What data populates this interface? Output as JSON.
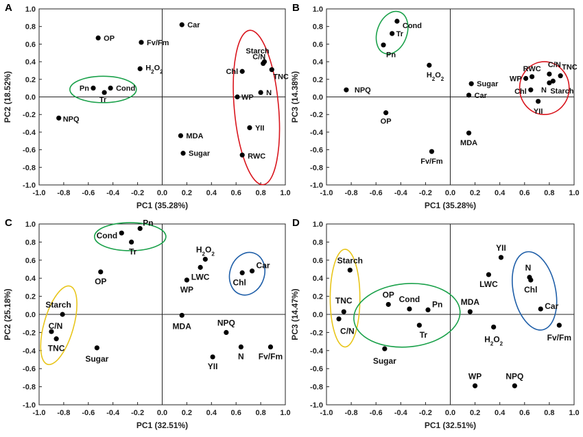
{
  "colors": {
    "green": "#1aa14a",
    "red": "#d9141c",
    "blue": "#1e5ea8",
    "yellow": "#e8c51a",
    "point": "#000000"
  },
  "chart_data": [
    {
      "panel": "A",
      "type": "scatter",
      "xlabel": "PC1 (35.28%)",
      "ylabel": "PC2 (18.52%)",
      "xlim": [
        -1.0,
        1.0
      ],
      "ylim": [
        -1.0,
        1.0
      ],
      "ticks": [
        "-1.0",
        "-0.8",
        "-0.6",
        "-0.4",
        "-0.2",
        "0.0",
        "0.2",
        "0.4",
        "0.6",
        "0.8",
        "1.0"
      ],
      "points": [
        {
          "label": "OP",
          "x": -0.52,
          "y": 0.67
        },
        {
          "label": "Fv/Fm",
          "x": -0.17,
          "y": 0.62
        },
        {
          "label": "Car",
          "x": 0.16,
          "y": 0.82
        },
        {
          "label": "H2O2",
          "x": -0.18,
          "y": 0.32
        },
        {
          "label": "Pn",
          "x": -0.56,
          "y": 0.1
        },
        {
          "label": "Cond",
          "x": -0.42,
          "y": 0.1
        },
        {
          "label": "Tr",
          "x": -0.47,
          "y": 0.05
        },
        {
          "label": "NPQ",
          "x": -0.84,
          "y": -0.24
        },
        {
          "label": "Starch",
          "x": 0.83,
          "y": 0.4
        },
        {
          "label": "C/N",
          "x": 0.82,
          "y": 0.38
        },
        {
          "label": "Chl",
          "x": 0.65,
          "y": 0.29
        },
        {
          "label": "TNC",
          "x": 0.89,
          "y": 0.31
        },
        {
          "label": "N",
          "x": 0.8,
          "y": 0.05
        },
        {
          "label": "WP",
          "x": 0.61,
          "y": 0.0
        },
        {
          "label": "YII",
          "x": 0.71,
          "y": -0.35
        },
        {
          "label": "MDA",
          "x": 0.15,
          "y": -0.44
        },
        {
          "label": "Sugar",
          "x": 0.17,
          "y": -0.64
        },
        {
          "label": "RWC",
          "x": 0.65,
          "y": -0.66
        }
      ],
      "groups": [
        {
          "color": "green",
          "members": [
            "Pn",
            "Cond",
            "Tr"
          ]
        },
        {
          "color": "red",
          "members": [
            "Starch",
            "C/N",
            "Chl",
            "TNC",
            "N",
            "WP",
            "YII",
            "RWC"
          ]
        }
      ]
    },
    {
      "panel": "B",
      "type": "scatter",
      "xlabel": "PC1 (35.28%)",
      "ylabel": "PC3 (14.38%)",
      "xlim": [
        -1.0,
        1.0
      ],
      "ylim": [
        -1.0,
        1.0
      ],
      "ticks": [
        "-1.0",
        "-0.8",
        "-0.6",
        "-0.4",
        "-0.2",
        "0.0",
        "0.2",
        "0.4",
        "0.6",
        "0.8",
        "1.0"
      ],
      "points": [
        {
          "label": "Cond",
          "x": -0.43,
          "y": 0.86
        },
        {
          "label": "Tr",
          "x": -0.47,
          "y": 0.72
        },
        {
          "label": "Pn",
          "x": -0.54,
          "y": 0.59
        },
        {
          "label": "H2O2",
          "x": -0.17,
          "y": 0.36
        },
        {
          "label": "NPQ",
          "x": -0.84,
          "y": 0.08
        },
        {
          "label": "Sugar",
          "x": 0.17,
          "y": 0.15
        },
        {
          "label": "Car",
          "x": 0.15,
          "y": 0.02
        },
        {
          "label": "OP",
          "x": -0.52,
          "y": -0.18
        },
        {
          "label": "MDA",
          "x": 0.15,
          "y": -0.41
        },
        {
          "label": "Fv/Fm",
          "x": -0.15,
          "y": -0.62
        },
        {
          "label": "RWC",
          "x": 0.66,
          "y": 0.23
        },
        {
          "label": "WP",
          "x": 0.61,
          "y": 0.21
        },
        {
          "label": "Chl",
          "x": 0.65,
          "y": 0.08
        },
        {
          "label": "C/N",
          "x": 0.8,
          "y": 0.26
        },
        {
          "label": "TNC",
          "x": 0.89,
          "y": 0.24
        },
        {
          "label": "N",
          "x": 0.8,
          "y": 0.16
        },
        {
          "label": "Starch",
          "x": 0.83,
          "y": 0.18
        },
        {
          "label": "YII",
          "x": 0.71,
          "y": -0.05
        }
      ],
      "groups": [
        {
          "color": "green",
          "members": [
            "Cond",
            "Tr",
            "Pn"
          ]
        },
        {
          "color": "red",
          "members": [
            "RWC",
            "WP",
            "Chl",
            "C/N",
            "TNC",
            "N",
            "Starch",
            "YII"
          ]
        }
      ]
    },
    {
      "panel": "C",
      "type": "scatter",
      "xlabel": "PC1 (32.51%)",
      "ylabel": "PC2 (25.18%)",
      "xlim": [
        -1.0,
        1.0
      ],
      "ylim": [
        -1.0,
        1.0
      ],
      "ticks": [
        "-1.0",
        "-0.8",
        "-0.6",
        "-0.4",
        "-0.2",
        "0.0",
        "0.2",
        "0.4",
        "0.6",
        "0.8",
        "1.0"
      ],
      "points": [
        {
          "label": "Cond",
          "x": -0.33,
          "y": 0.9
        },
        {
          "label": "Pn",
          "x": -0.18,
          "y": 0.95
        },
        {
          "label": "Tr",
          "x": -0.25,
          "y": 0.8
        },
        {
          "label": "OP",
          "x": -0.5,
          "y": 0.47
        },
        {
          "label": "H2O2",
          "x": 0.35,
          "y": 0.61
        },
        {
          "label": "LWC",
          "x": 0.31,
          "y": 0.52
        },
        {
          "label": "WP",
          "x": 0.2,
          "y": 0.38
        },
        {
          "label": "Chl",
          "x": 0.65,
          "y": 0.46
        },
        {
          "label": "Car",
          "x": 0.73,
          "y": 0.48
        },
        {
          "label": "Starch",
          "x": -0.81,
          "y": 0.0
        },
        {
          "label": "C/N",
          "x": -0.9,
          "y": -0.19
        },
        {
          "label": "TNC",
          "x": -0.86,
          "y": -0.27
        },
        {
          "label": "Sugar",
          "x": -0.53,
          "y": -0.37
        },
        {
          "label": "MDA",
          "x": 0.16,
          "y": -0.01
        },
        {
          "label": "NPQ",
          "x": 0.52,
          "y": -0.2
        },
        {
          "label": "N",
          "x": 0.64,
          "y": -0.36
        },
        {
          "label": "Fv/Fm",
          "x": 0.88,
          "y": -0.36
        },
        {
          "label": "YII",
          "x": 0.41,
          "y": -0.47
        }
      ],
      "groups": [
        {
          "color": "green",
          "members": [
            "Cond",
            "Pn",
            "Tr"
          ]
        },
        {
          "color": "blue",
          "members": [
            "Chl",
            "Car"
          ]
        },
        {
          "color": "yellow",
          "members": [
            "Starch",
            "C/N",
            "TNC"
          ]
        }
      ]
    },
    {
      "panel": "D",
      "type": "scatter",
      "xlabel": "PC1 (32.51%)",
      "ylabel": "PC3 (14.47%)",
      "xlim": [
        -1.0,
        1.0
      ],
      "ylim": [
        -1.0,
        1.0
      ],
      "ticks": [
        "-1.0",
        "-0.8",
        "-0.6",
        "-0.4",
        "-0.2",
        "0.0",
        "0.2",
        "0.4",
        "0.6",
        "0.8",
        "1.0"
      ],
      "points": [
        {
          "label": "Starch",
          "x": -0.81,
          "y": 0.49
        },
        {
          "label": "TNC",
          "x": -0.86,
          "y": 0.03
        },
        {
          "label": "C/N",
          "x": -0.9,
          "y": -0.05
        },
        {
          "label": "OP",
          "x": -0.5,
          "y": 0.11
        },
        {
          "label": "Cond",
          "x": -0.33,
          "y": 0.06
        },
        {
          "label": "Pn",
          "x": -0.18,
          "y": 0.05
        },
        {
          "label": "Tr",
          "x": -0.25,
          "y": -0.12
        },
        {
          "label": "Sugar",
          "x": -0.53,
          "y": -0.38
        },
        {
          "label": "MDA",
          "x": 0.16,
          "y": 0.03
        },
        {
          "label": "YII",
          "x": 0.41,
          "y": 0.63
        },
        {
          "label": "LWC",
          "x": 0.31,
          "y": 0.44
        },
        {
          "label": "N",
          "x": 0.64,
          "y": 0.41
        },
        {
          "label": "Chl",
          "x": 0.65,
          "y": 0.38
        },
        {
          "label": "Car",
          "x": 0.73,
          "y": 0.06
        },
        {
          "label": "Fv/Fm",
          "x": 0.88,
          "y": -0.12
        },
        {
          "label": "H2O2",
          "x": 0.35,
          "y": -0.14
        },
        {
          "label": "WP",
          "x": 0.2,
          "y": -0.79
        },
        {
          "label": "NPQ",
          "x": 0.52,
          "y": -0.79
        }
      ],
      "groups": [
        {
          "color": "yellow",
          "members": [
            "Starch",
            "TNC",
            "C/N"
          ]
        },
        {
          "color": "green",
          "members": [
            "OP",
            "Cond",
            "Pn",
            "Tr"
          ]
        },
        {
          "color": "blue",
          "members": [
            "N",
            "Chl",
            "Car"
          ]
        }
      ]
    }
  ]
}
